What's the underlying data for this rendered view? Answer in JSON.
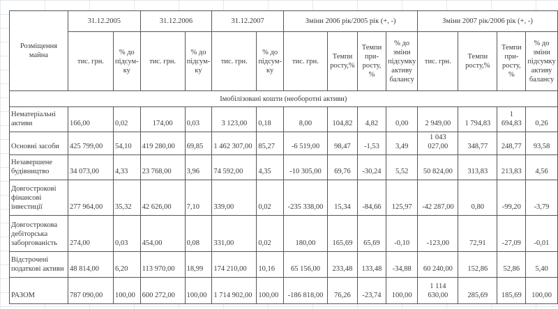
{
  "header": {
    "row_label": "Розміщення майна",
    "groups": [
      "31.12.2005",
      "31.12.2006",
      "31.12.2007",
      "Зміни 2006 рік/2005 рік (+, -)",
      "Зміни 2007 рік/2006 рік (+, -)"
    ],
    "sub_amount": "тис. грн.",
    "sub_pct": "% до підсум-ку",
    "sub_growth": "Темпи росту,%",
    "sub_increase": "Темпи при-росту, %",
    "sub_share_change": "% до зміни підсумку активу балансу"
  },
  "section": "Імобілізовані кошти (необоротні активи)",
  "rows": [
    {
      "name": "Нематеріальні активи",
      "v": [
        "166,00",
        "0,02",
        "174,00",
        "0,03",
        "3 123,00",
        "0,18",
        "8,00",
        "104,82",
        "4,82",
        "0,00",
        "2 949,00",
        "1 794,83",
        "1 694,83",
        "0,26"
      ]
    },
    {
      "name": "Основні засоби",
      "v": [
        "425 799,00",
        "54,10",
        "419 280,00",
        "69,85",
        "1 462 307,00",
        "85,27",
        "-6 519,00",
        "98,47",
        "-1,53",
        "3,49",
        "1 043 027,00",
        "348,77",
        "248,77",
        "93,58"
      ]
    },
    {
      "name": "Незавершене будівництво",
      "v": [
        "34 073,00",
        "4,33",
        "23 768,00",
        "3,96",
        "74 592,00",
        "4,35",
        "-10 305,00",
        "69,76",
        "-30,24",
        "5,52",
        "50 824,00",
        "313,83",
        "213,83",
        "4,56"
      ]
    },
    {
      "name": "Довгострокові фінансові інвестиції",
      "v": [
        "277 964,00",
        "35,32",
        "42 626,00",
        "7,10",
        "339,00",
        "0,02",
        "-235 338,00",
        "15,34",
        "-84,66",
        "125,97",
        "-42 287,00",
        "0,80",
        "-99,20",
        "-3,79"
      ]
    },
    {
      "name": "Довгострокова дебіторська заборгованість",
      "v": [
        "274,00",
        "0,03",
        "454,00",
        "0,08",
        "331,00",
        "0,02",
        "180,00",
        "165,69",
        "65,69",
        "-0,10",
        "-123,00",
        "72,91",
        "-27,09",
        "-0,01"
      ]
    },
    {
      "name": "Відстрочені податкові активи",
      "v": [
        "48 814,00",
        "6,20",
        "113 970,00",
        "18,99",
        "174 210,00",
        "10,16",
        "65 156,00",
        "233,48",
        "133,48",
        "-34,88",
        "60 240,00",
        "152,86",
        "52,86",
        "5,40"
      ]
    },
    {
      "name": "РАЗОМ",
      "v": [
        "787 090,00",
        "100,00",
        "600 272,00",
        "100,00",
        "1 714 902,00",
        "100,00",
        "-186 818,00",
        "76,26",
        "-23,74",
        "100,00",
        "1 114 630,00",
        "285,69",
        "185,69",
        "100,00"
      ]
    }
  ]
}
